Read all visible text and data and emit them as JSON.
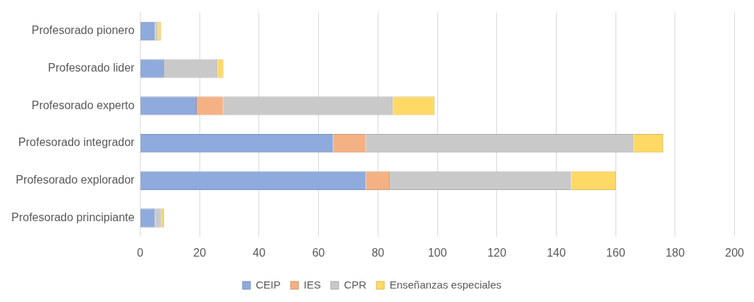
{
  "chart_data": {
    "type": "bar",
    "orientation": "horizontal",
    "stacked": true,
    "categories": [
      "Profesorado pionero",
      "Profesorado lider",
      "Profesorado experto",
      "Profesorado integrador",
      "Profesorado explorador",
      "Profesorado principiante"
    ],
    "series": [
      {
        "name": "CEIP",
        "color": "#8faadc",
        "values": [
          5,
          8,
          19,
          65,
          76,
          5
        ]
      },
      {
        "name": "IES",
        "color": "#f4b183",
        "values": [
          0,
          0,
          9,
          11,
          8,
          0
        ]
      },
      {
        "name": "CPR",
        "color": "#c9c9c9",
        "values": [
          1,
          18,
          57,
          90,
          61,
          2
        ]
      },
      {
        "name": "Enseñanzas especiales",
        "color": "#ffd966",
        "values": [
          1,
          2,
          14,
          10,
          15,
          1
        ]
      }
    ],
    "xlim": [
      0,
      200
    ],
    "xticks": [
      0,
      20,
      40,
      60,
      80,
      100,
      120,
      140,
      160,
      180,
      200
    ],
    "grid": "x",
    "legend": "bottom"
  }
}
